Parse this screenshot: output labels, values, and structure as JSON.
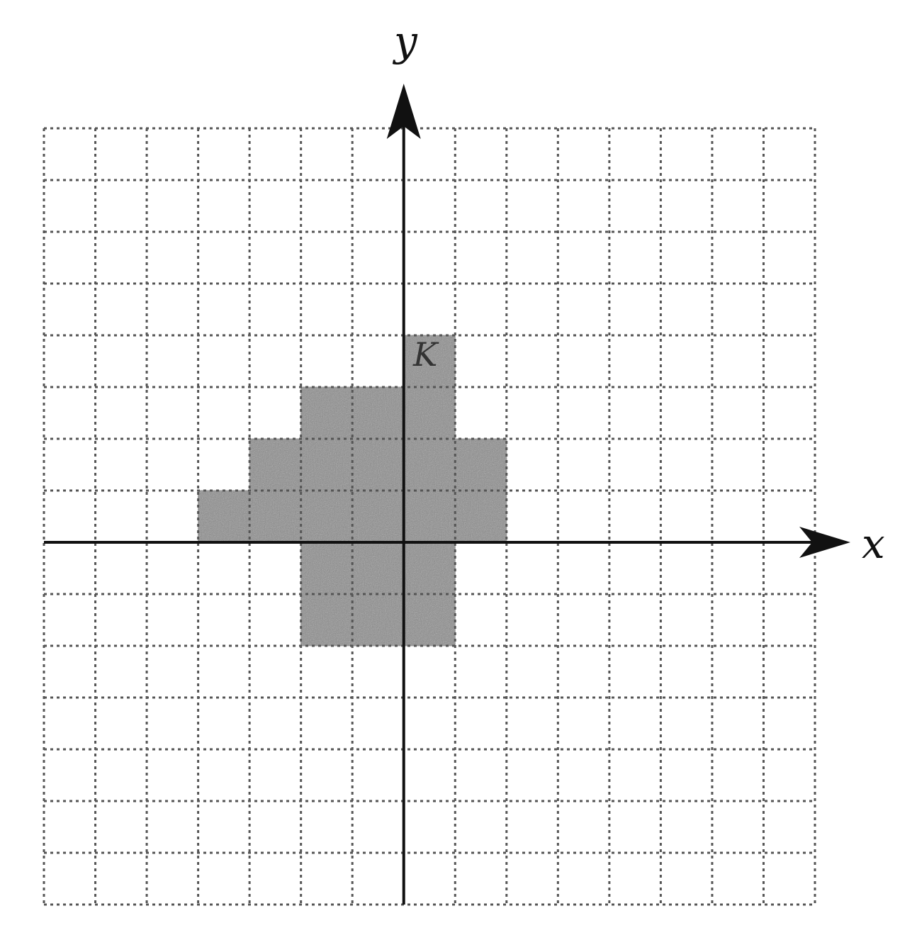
{
  "diagram": {
    "type": "coordinate-grid",
    "x_axis_label": "x",
    "y_axis_label": "y",
    "x_range": [
      -7,
      8
    ],
    "y_range": [
      -7,
      8
    ],
    "grid_step": 1,
    "grid_style": "dotted",
    "shaded_region": {
      "cells": [
        [
          0,
          3
        ],
        [
          -2,
          2
        ],
        [
          -1,
          2
        ],
        [
          0,
          2
        ],
        [
          -3,
          1
        ],
        [
          -2,
          1
        ],
        [
          -1,
          1
        ],
        [
          0,
          1
        ],
        [
          1,
          1
        ],
        [
          -4,
          0
        ],
        [
          -3,
          0
        ],
        [
          -2,
          0
        ],
        [
          -1,
          0
        ],
        [
          0,
          0
        ],
        [
          1,
          0
        ],
        [
          -2,
          -1
        ],
        [
          -1,
          -1
        ],
        [
          0,
          -1
        ],
        [
          -2,
          -2
        ],
        [
          -1,
          -2
        ],
        [
          0,
          -2
        ]
      ],
      "fill_color": "#8a8a8a",
      "label": "K"
    },
    "colors": {
      "grid": "#555555",
      "axis": "#111111"
    }
  }
}
